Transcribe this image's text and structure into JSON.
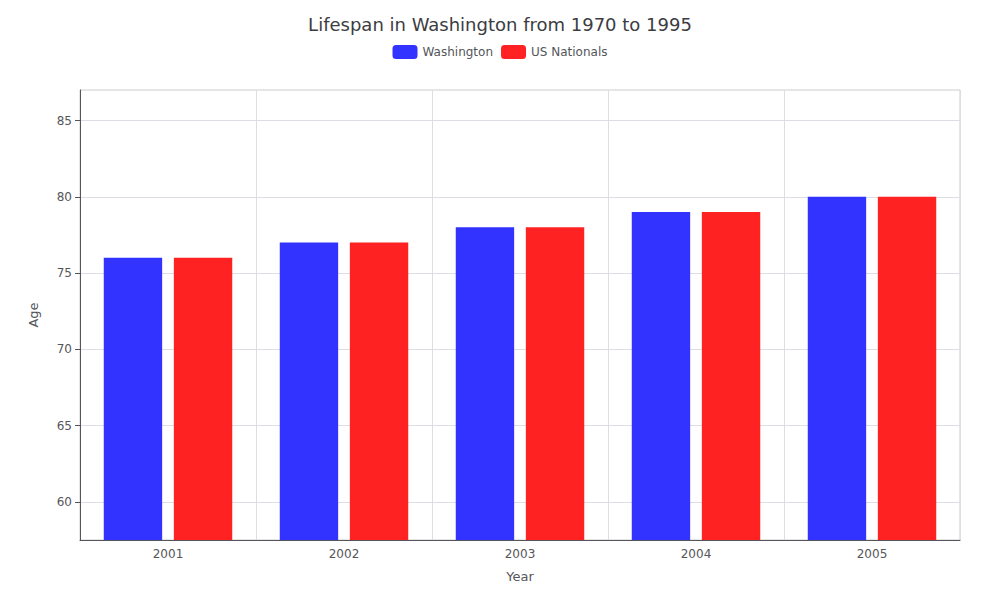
{
  "chart_data": {
    "type": "bar",
    "title": "Lifespan in Washington from 1970 to 1995",
    "xlabel": "Year",
    "ylabel": "Age",
    "categories": [
      "2001",
      "2002",
      "2003",
      "2004",
      "2005"
    ],
    "series": [
      {
        "name": "Washington",
        "color": "#3333ff",
        "values": [
          76,
          77,
          78,
          79,
          80
        ]
      },
      {
        "name": "US Nationals",
        "color": "#ff2222",
        "values": [
          76,
          77,
          78,
          79,
          80
        ]
      }
    ],
    "ylim": [
      57.5,
      87
    ],
    "yticks": [
      60,
      65,
      70,
      75,
      80,
      85
    ],
    "grid": true,
    "legend": "top"
  }
}
